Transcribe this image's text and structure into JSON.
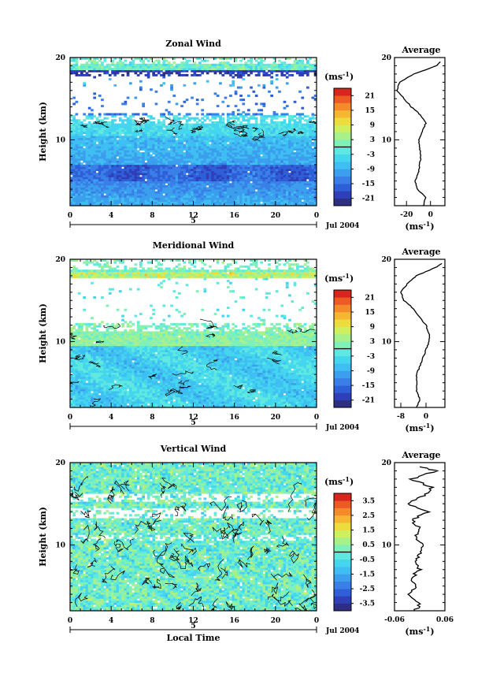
{
  "chart_data": [
    {
      "type": "heatmap",
      "title": "Zonal Wind",
      "ylabel": "Height (km)",
      "xlim": [
        0,
        24
      ],
      "ylim": [
        2,
        20
      ],
      "x_ticks": [
        "0",
        "4",
        "8",
        "12",
        "16",
        "20",
        "0"
      ],
      "y_ticks": [
        "10",
        "20"
      ],
      "date_label": "Jul 2004",
      "day_marker": "5",
      "colorbar": {
        "unit": "(ms",
        "unit_exp": "-1",
        "unit_close": ")",
        "ticks": [
          "21",
          "15",
          "9",
          "3",
          "-3",
          "-9",
          "-15",
          "-21"
        ],
        "range": [
          -24,
          24
        ]
      },
      "profile": {
        "title": "Average",
        "xlim": [
          -30,
          12
        ],
        "x_ticks": [
          "-20",
          "0"
        ],
        "xlabel": "(ms",
        "xlabel_exp": "-1",
        "xlabel_close": ")",
        "height_km": [
          2,
          3,
          4,
          5,
          6,
          7,
          8,
          9,
          10,
          11,
          12,
          13,
          14,
          15,
          16,
          17,
          18,
          19,
          19.5
        ],
        "values": [
          -6,
          -4,
          -11,
          -13,
          -10,
          -9,
          -8,
          -9,
          -10,
          -7,
          -4,
          -8,
          -16,
          -22,
          -28,
          -26,
          -14,
          5,
          8
        ]
      }
    },
    {
      "type": "heatmap",
      "title": "Meridional Wind",
      "ylabel": "Height (km)",
      "xlim": [
        0,
        24
      ],
      "ylim": [
        2,
        20
      ],
      "x_ticks": [
        "0",
        "4",
        "8",
        "12",
        "16",
        "20",
        "0"
      ],
      "y_ticks": [
        "10",
        "20"
      ],
      "date_label": "Jul 2004",
      "day_marker": "5",
      "colorbar": {
        "unit": "(ms",
        "unit_exp": "-1",
        "unit_close": ")",
        "ticks": [
          "21",
          "15",
          "9",
          "3",
          "-3",
          "-9",
          "-15",
          "-21"
        ],
        "range": [
          -24,
          24
        ]
      },
      "profile": {
        "title": "Average",
        "xlim": [
          -10,
          6
        ],
        "x_ticks": [
          "-8",
          "0"
        ],
        "xlabel": "(ms",
        "xlabel_exp": "-1",
        "xlabel_close": ")",
        "height_km": [
          2,
          3,
          4,
          5,
          6,
          7,
          8,
          9,
          10,
          11,
          12,
          13,
          14,
          15,
          16,
          17,
          18,
          19,
          19.5
        ],
        "values": [
          -3,
          -2,
          -3,
          -3,
          -3,
          -2,
          -1,
          0,
          1,
          1,
          0,
          -2,
          -4,
          -7,
          -8,
          -6,
          -3,
          3,
          5
        ]
      }
    },
    {
      "type": "heatmap",
      "title": "Vertical Wind",
      "ylabel": "Height (km)",
      "xlabel": "Local Time",
      "xlim": [
        0,
        24
      ],
      "ylim": [
        2,
        20
      ],
      "x_ticks": [
        "0",
        "4",
        "8",
        "12",
        "16",
        "20",
        "0"
      ],
      "y_ticks": [
        "10",
        "20"
      ],
      "date_label": "Jul 2004",
      "day_marker": "5",
      "colorbar": {
        "unit": "(ms",
        "unit_exp": "-1",
        "unit_close": ")",
        "ticks": [
          "3.5",
          "2.5",
          "1.5",
          "0.5",
          "-0.5",
          "-1.5",
          "-2.5",
          "-3.5"
        ],
        "range": [
          -4,
          4
        ]
      },
      "profile": {
        "title": "Average",
        "xlim": [
          -0.06,
          0.06
        ],
        "x_ticks": [
          "-0.06",
          "0.06"
        ],
        "xlabel": "(ms",
        "xlabel_exp": "-1",
        "xlabel_close": ")",
        "height_km": [
          2,
          3,
          4,
          5,
          6,
          7,
          8,
          9,
          10,
          11,
          12,
          13,
          14,
          15,
          16,
          17,
          18,
          19,
          19.5
        ],
        "values": [
          -0.01,
          0.0,
          -0.03,
          -0.01,
          -0.02,
          0.0,
          -0.01,
          0.0,
          0.01,
          -0.01,
          0.0,
          -0.02,
          0.02,
          -0.03,
          0.01,
          0.03,
          -0.02,
          0.04,
          0.0
        ]
      }
    }
  ]
}
